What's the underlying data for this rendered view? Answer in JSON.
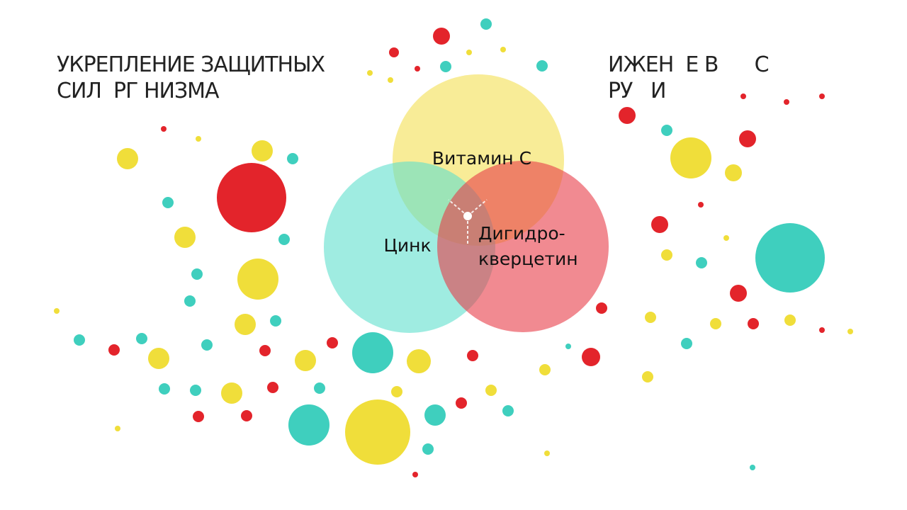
{
  "header": {
    "left": [
      "УКРЕПЛЕНИЕ ЗАЩИТНЫХ",
      "СИЛ  РГ НИЗМА"
    ],
    "right": [
      "ИЖЕН  Е В      С",
      "РУ   И"
    ]
  },
  "venn": {
    "labels": [
      "Витамин С",
      "Цинк",
      "Дигидро-",
      "кверцетин"
    ]
  }
}
